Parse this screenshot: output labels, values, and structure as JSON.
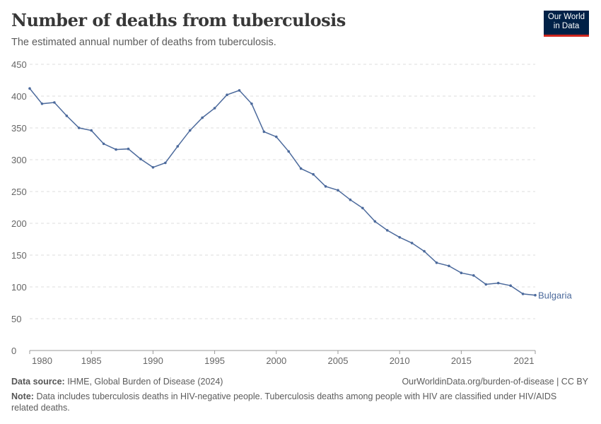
{
  "title": "Number of deaths from tuberculosis",
  "subtitle": "The estimated annual number of deaths from tuberculosis.",
  "logo": {
    "line1": "Our World",
    "line2": "in Data"
  },
  "footer": {
    "source_label": "Data source:",
    "source": "IHME, Global Burden of Disease (2024)",
    "url": "OurWorldinData.org/burden-of-disease | CC BY",
    "note_label": "Note:",
    "note": "Data includes tuberculosis deaths in HIV-negative people. Tuberculosis deaths among people with HIV are classified under HIV/AIDS related deaths."
  },
  "chart_data": {
    "type": "line",
    "ylim": [
      0,
      450
    ],
    "yticks": [
      0,
      50,
      100,
      150,
      200,
      250,
      300,
      350,
      400,
      450
    ],
    "xticks": [
      1980,
      1985,
      1990,
      1995,
      2000,
      2005,
      2010,
      2015,
      2021
    ],
    "grid": "horizontal dashed",
    "line_color": "#4c6a9c",
    "series": [
      {
        "name": "Bulgaria",
        "x": [
          1980,
          1981,
          1982,
          1983,
          1984,
          1985,
          1986,
          1987,
          1988,
          1989,
          1990,
          1991,
          1992,
          1993,
          1994,
          1995,
          1996,
          1997,
          1998,
          1999,
          2000,
          2001,
          2002,
          2003,
          2004,
          2005,
          2006,
          2007,
          2008,
          2009,
          2010,
          2011,
          2012,
          2013,
          2014,
          2015,
          2016,
          2017,
          2018,
          2019,
          2020,
          2021
        ],
        "values": [
          412,
          388,
          390,
          369,
          350,
          346,
          325,
          316,
          317,
          301,
          288,
          295,
          321,
          346,
          366,
          381,
          402,
          409,
          388,
          344,
          336,
          313,
          286,
          277,
          258,
          252,
          237,
          224,
          203,
          189,
          178,
          169,
          156,
          138,
          133,
          122,
          118,
          104,
          106,
          102,
          89,
          87
        ]
      }
    ]
  }
}
